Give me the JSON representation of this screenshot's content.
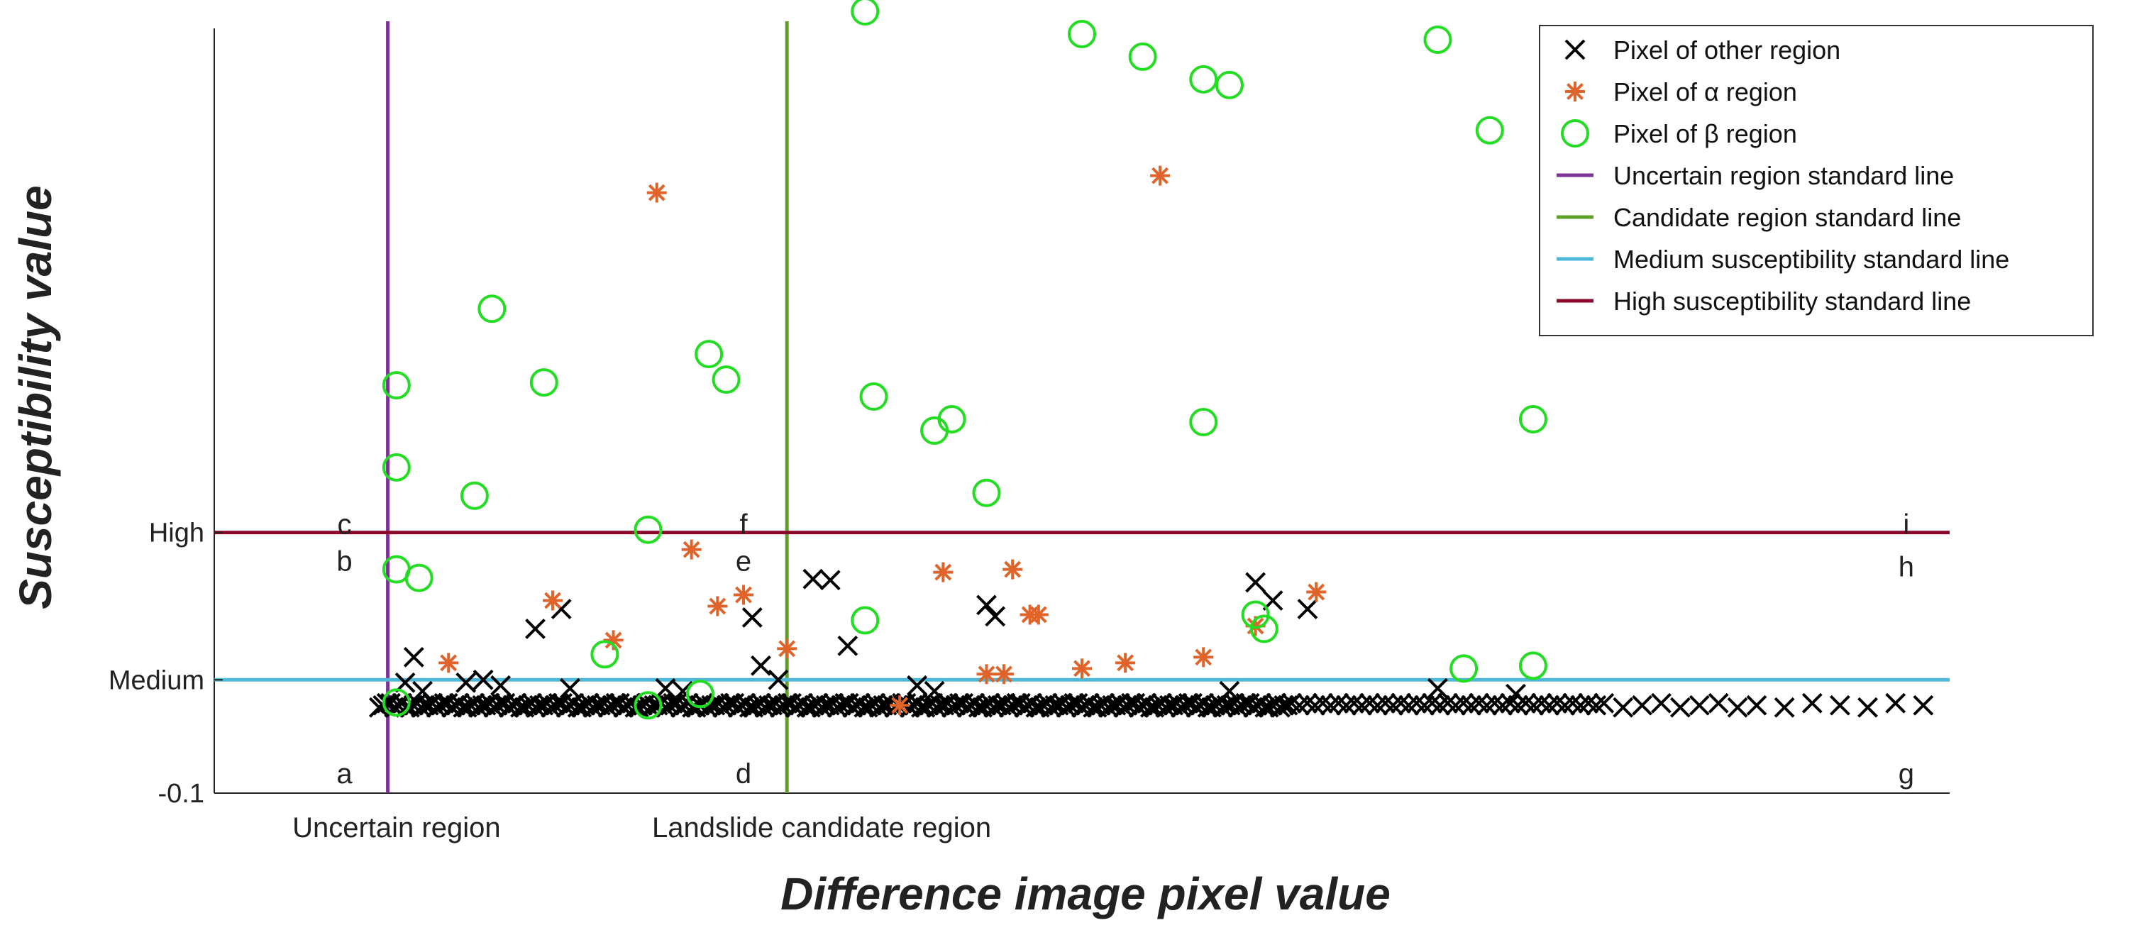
{
  "chart_data": {
    "type": "scatter",
    "xlabel": "Difference image pixel value",
    "ylabel": "Susceptibility value",
    "xlim": [
      0,
      100
    ],
    "ylim": [
      -0.1,
      1.25
    ],
    "y_ticks": [
      {
        "value": -0.1,
        "label": "-0.1"
      },
      {
        "value": 0.1,
        "label": "Medium"
      },
      {
        "value": 0.36,
        "label": "High"
      }
    ],
    "x_region_labels": [
      {
        "x": 10.5,
        "label": "Uncertain region"
      },
      {
        "x": 35.0,
        "label": "Landslide candidate region"
      }
    ],
    "region_letters": [
      {
        "x": 7.5,
        "y": -0.065,
        "label": "a"
      },
      {
        "x": 7.5,
        "y": 0.31,
        "label": "b"
      },
      {
        "x": 7.5,
        "y": 0.375,
        "label": "c"
      },
      {
        "x": 30.5,
        "y": -0.065,
        "label": "d"
      },
      {
        "x": 30.5,
        "y": 0.31,
        "label": "e"
      },
      {
        "x": 30.5,
        "y": 0.375,
        "label": "f"
      },
      {
        "x": 97.5,
        "y": -0.065,
        "label": "g"
      },
      {
        "x": 97.5,
        "y": 0.3,
        "label": "h"
      },
      {
        "x": 97.5,
        "y": 0.375,
        "label": "i"
      }
    ],
    "reference_lines": [
      {
        "orientation": "vertical",
        "value": 10,
        "name": "Uncertain region standard line",
        "color": "#7b3294"
      },
      {
        "orientation": "vertical",
        "value": 33,
        "name": "Candidate region standard line",
        "color": "#5fa02a"
      },
      {
        "orientation": "horizontal",
        "value": 0.1,
        "name": "Medium susceptibility standard line",
        "color": "#4db8d8"
      },
      {
        "orientation": "horizontal",
        "value": 0.36,
        "name": "High susceptibility standard line",
        "color": "#8b0a2a"
      }
    ],
    "series": [
      {
        "name": "Pixel of other region",
        "marker": "x",
        "color": "#000000",
        "points": [
          [
            11.5,
            0.14
          ],
          [
            11.0,
            0.095
          ],
          [
            12.0,
            0.08
          ],
          [
            14.5,
            0.095
          ],
          [
            15.5,
            0.1
          ],
          [
            16.5,
            0.09
          ],
          [
            18.5,
            0.19
          ],
          [
            20.0,
            0.225
          ],
          [
            20.5,
            0.085
          ],
          [
            26.0,
            0.085
          ],
          [
            27.0,
            0.08
          ],
          [
            31.0,
            0.21
          ],
          [
            31.5,
            0.125
          ],
          [
            32.5,
            0.1
          ],
          [
            34.5,
            0.278
          ],
          [
            35.5,
            0.276
          ],
          [
            36.5,
            0.16
          ],
          [
            40.5,
            0.09
          ],
          [
            41.5,
            0.08
          ],
          [
            44.5,
            0.232
          ],
          [
            45.0,
            0.212
          ],
          [
            58.5,
            0.08
          ],
          [
            60.0,
            0.272
          ],
          [
            61.0,
            0.24
          ],
          [
            63.0,
            0.225
          ],
          [
            70.5,
            0.085
          ],
          [
            75.0,
            0.075
          ]
        ],
        "baseline": {
          "y": 0.055,
          "x_start": 9.5,
          "x_end": 100
        }
      },
      {
        "name": "Pixel of α region",
        "marker": "asterisk",
        "color": "#e0642a",
        "points": [
          [
            25.5,
            0.96
          ],
          [
            54.5,
            0.99
          ],
          [
            27.5,
            0.33
          ],
          [
            29.0,
            0.23
          ],
          [
            30.5,
            0.25
          ],
          [
            19.5,
            0.24
          ],
          [
            13.5,
            0.13
          ],
          [
            23.0,
            0.17
          ],
          [
            33.0,
            0.155
          ],
          [
            42.0,
            0.29
          ],
          [
            46.0,
            0.295
          ],
          [
            47.0,
            0.215
          ],
          [
            47.5,
            0.215
          ],
          [
            50.0,
            0.12
          ],
          [
            52.5,
            0.13
          ],
          [
            44.5,
            0.11
          ],
          [
            45.5,
            0.11
          ],
          [
            57.0,
            0.14
          ],
          [
            60.0,
            0.195
          ],
          [
            63.5,
            0.255
          ],
          [
            39.5,
            0.055
          ]
        ]
      },
      {
        "name": "Pixel of β region",
        "marker": "circle",
        "color": "#22dd22",
        "points": [
          [
            37.5,
            1.28
          ],
          [
            50.0,
            1.24
          ],
          [
            53.5,
            1.2
          ],
          [
            57.0,
            1.16
          ],
          [
            58.5,
            1.15
          ],
          [
            70.5,
            1.23
          ],
          [
            73.5,
            1.07
          ],
          [
            16.0,
            0.755
          ],
          [
            19.0,
            0.625
          ],
          [
            10.5,
            0.62
          ],
          [
            10.5,
            0.475
          ],
          [
            15.0,
            0.425
          ],
          [
            28.5,
            0.675
          ],
          [
            29.5,
            0.63
          ],
          [
            25.0,
            0.365
          ],
          [
            38.0,
            0.6
          ],
          [
            42.5,
            0.56
          ],
          [
            41.5,
            0.54
          ],
          [
            44.5,
            0.43
          ],
          [
            57.0,
            0.555
          ],
          [
            76.0,
            0.56
          ],
          [
            10.5,
            0.295
          ],
          [
            11.8,
            0.28
          ],
          [
            22.5,
            0.145
          ],
          [
            37.5,
            0.205
          ],
          [
            60.0,
            0.215
          ],
          [
            60.5,
            0.19
          ],
          [
            72.0,
            0.12
          ],
          [
            76.0,
            0.125
          ],
          [
            10.5,
            0.06
          ],
          [
            25.0,
            0.055
          ],
          [
            28.0,
            0.075
          ]
        ]
      }
    ],
    "legend": {
      "position": "top-right",
      "entries": [
        {
          "label": "Pixel of other region",
          "marker": "x",
          "color": "#000000"
        },
        {
          "label": "Pixel of α region",
          "marker": "asterisk",
          "color": "#e0642a"
        },
        {
          "label": "Pixel of β region",
          "marker": "circle",
          "color": "#22dd22"
        },
        {
          "label": "Uncertain region standard line",
          "marker": "line",
          "color": "#7b3294"
        },
        {
          "label": "Candidate region standard line",
          "marker": "line",
          "color": "#5fa02a"
        },
        {
          "label": "Medium susceptibility standard line",
          "marker": "line",
          "color": "#4db8d8"
        },
        {
          "label": "High susceptibility standard line",
          "marker": "line",
          "color": "#8b0a2a"
        }
      ]
    },
    "grid": false
  }
}
